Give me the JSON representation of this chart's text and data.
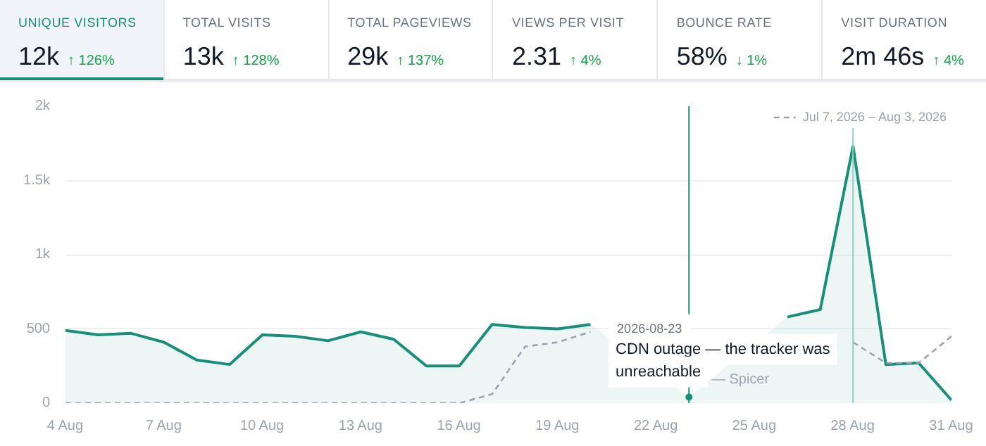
{
  "chart_data": [
    {
      "type": "other",
      "annotations": [
        "UNIQUE VISITORS",
        "12k",
        "↑ 126%",
        "TOTAL VISITS",
        "13k",
        "↑ 128%",
        "TOTAL PAGEVIEWS",
        "29k",
        "↑ 137%",
        "VIEWS PER VISIT",
        "2.31",
        "↑ 4%",
        "BOUNCE RATE",
        "58%",
        "↓ 1%",
        "VISIT DURATION",
        "2m 46s",
        "↑ 4%"
      ]
    },
    {
      "type": "line",
      "x": [
        "2026-08-04",
        "2026-08-05",
        "2026-08-06",
        "2026-08-07",
        "2026-08-08",
        "2026-08-09",
        "2026-08-10",
        "2026-08-11",
        "2026-08-12",
        "2026-08-13",
        "2026-08-14",
        "2026-08-15",
        "2026-08-16",
        "2026-08-17",
        "2026-08-18",
        "2026-08-19",
        "2026-08-20",
        "2026-08-21",
        "2026-08-22",
        "2026-08-23",
        "2026-08-24",
        "2026-08-25",
        "2026-08-26",
        "2026-08-27",
        "2026-08-28",
        "2026-08-29",
        "2026-08-30",
        "2026-08-31"
      ],
      "series": [
        {
          "type": "area",
          "color": "#178f7a",
          "values": [
            490,
            460,
            470,
            410,
            290,
            260,
            460,
            450,
            420,
            480,
            430,
            250,
            250,
            530,
            510,
            500,
            530,
            null,
            null,
            40,
            null,
            null,
            580,
            630,
            1730,
            260,
            270,
            20
          ]
        },
        {
          "name": "Jul 7, 2026 – Aug 3, 2026",
          "color": "#9ca3af",
          "line_style": "dashed",
          "values": [
            0,
            0,
            0,
            0,
            0,
            0,
            0,
            0,
            0,
            0,
            0,
            0,
            0,
            60,
            380,
            410,
            480,
            null,
            null,
            null,
            null,
            null,
            null,
            null,
            410,
            270,
            270,
            450
          ]
        }
      ],
      "xlim": [
        "2026-08-04",
        "2026-08-31"
      ],
      "xticks": [
        {
          "value": "2026-08-04",
          "label": "4 Aug"
        },
        {
          "value": "2026-08-07",
          "label": "7 Aug"
        },
        {
          "value": "2026-08-10",
          "label": "10 Aug"
        },
        {
          "value": "2026-08-13",
          "label": "13 Aug"
        },
        {
          "value": "2026-08-16",
          "label": "16 Aug"
        },
        {
          "value": "2026-08-19",
          "label": "19 Aug"
        },
        {
          "value": "2026-08-22",
          "label": "22 Aug"
        },
        {
          "value": "2026-08-25",
          "label": "25 Aug"
        },
        {
          "value": "2026-08-28",
          "label": "28 Aug"
        },
        {
          "value": "2026-08-31",
          "label": "31 Aug"
        }
      ],
      "ylim": [
        0,
        2000
      ],
      "yticks": [
        0,
        500,
        {
          "value": 1000,
          "label": "1k"
        },
        {
          "value": 1500,
          "label": "1.5k"
        },
        {
          "value": 2000,
          "label": "2k"
        }
      ],
      "grid": "y",
      "legend": "top right",
      "ref_lines": [
        {
          "axis": "x",
          "value": "2026-08-23",
          "color": "#178f7a"
        },
        {
          "axis": "x",
          "value": "2026-08-28",
          "color": "#8fd0c2"
        }
      ],
      "annotations": [
        "2026-08-23",
        "CDN outage — the tracker was unreachable",
        "— Spicer"
      ]
    }
  ]
}
